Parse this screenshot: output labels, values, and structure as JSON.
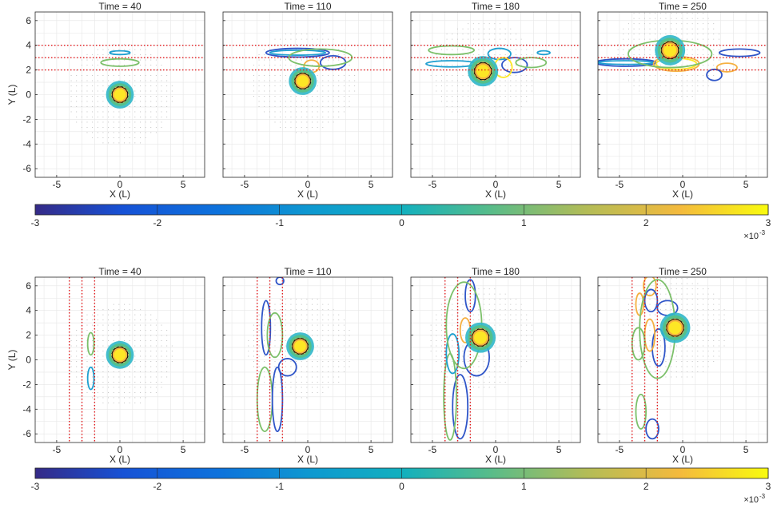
{
  "figure": {
    "axis_labels": {
      "x": "X (L)",
      "y": "Y (L)"
    },
    "colorbar_exponent_prefix": "×10",
    "colorbar_exponent": "-3"
  },
  "chart_data": [
    {
      "type": "contour",
      "row": 1,
      "title": "Time =  40",
      "xlabel": "X (L)",
      "ylabel": "Y (L)",
      "xlim": [
        -6.7,
        6.7
      ],
      "ylim": [
        -6.7,
        6.7
      ],
      "xticks": [
        -5,
        0,
        5
      ],
      "yticks": [
        -6,
        -4,
        -2,
        0,
        2,
        4,
        6
      ],
      "grid": true,
      "reference_lines": {
        "orientation": "horizontal",
        "color": "#e41a1c",
        "style": "dotted",
        "values": [
          2,
          3,
          4
        ]
      },
      "vortex": {
        "x": 0,
        "y": 0,
        "radius": 1.1
      },
      "contours": [
        {
          "x": 0,
          "y": 3.4,
          "rx": 0.8,
          "ry": 0.15,
          "color": "#1f9fd0",
          "level": -0.8
        },
        {
          "x": 0,
          "y": 2.6,
          "rx": 1.5,
          "ry": 0.3,
          "color": "#7cc06a",
          "level": 0.5
        }
      ]
    },
    {
      "type": "contour",
      "row": 1,
      "title": "Time =  110",
      "xlabel": "X (L)",
      "ylabel": "",
      "xlim": [
        -6.7,
        6.7
      ],
      "ylim": [
        -6.7,
        6.7
      ],
      "xticks": [
        -5,
        0,
        5
      ],
      "yticks": [
        -6,
        -4,
        -2,
        0,
        2,
        4,
        6
      ],
      "grid": true,
      "reference_lines": {
        "orientation": "horizontal",
        "color": "#e41a1c",
        "style": "dotted",
        "values": [
          2,
          3,
          4
        ]
      },
      "vortex": {
        "x": -0.4,
        "y": 1.1,
        "radius": 1.1
      },
      "contours": [
        {
          "x": -0.8,
          "y": 3.4,
          "rx": 2.5,
          "ry": 0.35,
          "color": "#2f55c8",
          "level": -2.5
        },
        {
          "x": -0.8,
          "y": 3.4,
          "rx": 2.2,
          "ry": 0.2,
          "color": "#1f9fd0",
          "level": -1.2
        },
        {
          "x": 2.0,
          "y": 2.6,
          "rx": 1.0,
          "ry": 0.55,
          "color": "#2f55c8",
          "level": -2
        },
        {
          "x": 0.3,
          "y": 2.3,
          "rx": 0.6,
          "ry": 0.5,
          "color": "#f5b041",
          "level": 2.2
        },
        {
          "x": 1.0,
          "y": 3.0,
          "rx": 2.5,
          "ry": 0.7,
          "color": "#7cc06a",
          "level": 0.5
        }
      ]
    },
    {
      "type": "contour",
      "row": 1,
      "title": "Time =  180",
      "xlabel": "X (L)",
      "ylabel": "",
      "xlim": [
        -6.7,
        6.7
      ],
      "ylim": [
        -6.7,
        6.7
      ],
      "xticks": [
        -5,
        0,
        5
      ],
      "yticks": [
        -6,
        -4,
        -2,
        0,
        2,
        4,
        6
      ],
      "grid": true,
      "reference_lines": {
        "orientation": "horizontal",
        "color": "#e41a1c",
        "style": "dotted",
        "values": [
          2,
          3,
          4
        ]
      },
      "vortex": {
        "x": -1.0,
        "y": 1.9,
        "radius": 1.2
      },
      "contours": [
        {
          "x": -3.5,
          "y": 2.5,
          "rx": 2.0,
          "ry": 0.25,
          "color": "#1f9fd0",
          "level": -1
        },
        {
          "x": -3.5,
          "y": 3.6,
          "rx": 1.8,
          "ry": 0.35,
          "color": "#7cc06a",
          "level": 0.5
        },
        {
          "x": 1.5,
          "y": 2.4,
          "rx": 1.0,
          "ry": 0.6,
          "color": "#2f55c8",
          "level": -2
        },
        {
          "x": 0.3,
          "y": 3.3,
          "rx": 0.9,
          "ry": 0.45,
          "color": "#1f9fd0",
          "level": -1
        },
        {
          "x": 0.6,
          "y": 2.2,
          "rx": 0.7,
          "ry": 0.8,
          "color": "#fde725",
          "level": 3
        },
        {
          "x": 2.8,
          "y": 2.6,
          "rx": 1.2,
          "ry": 0.4,
          "color": "#7cc06a",
          "level": 0.5
        },
        {
          "x": 3.8,
          "y": 3.4,
          "rx": 0.5,
          "ry": 0.15,
          "color": "#1f9fd0",
          "level": -1
        }
      ]
    },
    {
      "type": "contour",
      "row": 1,
      "title": "Time =  250",
      "xlabel": "X (L)",
      "ylabel": "",
      "xlim": [
        -6.7,
        6.7
      ],
      "ylim": [
        -6.7,
        6.7
      ],
      "xticks": [
        -5,
        0,
        5
      ],
      "yticks": [
        -6,
        -4,
        -2,
        0,
        2,
        4,
        6
      ],
      "grid": true,
      "reference_lines": {
        "orientation": "horizontal",
        "color": "#e41a1c",
        "style": "dotted",
        "values": [
          2,
          3,
          4
        ]
      },
      "vortex": {
        "x": -1.0,
        "y": 3.6,
        "radius": 1.2
      },
      "contours": [
        {
          "x": -4.5,
          "y": 2.6,
          "rx": 2.4,
          "ry": 0.3,
          "color": "#2f55c8",
          "level": -2.5
        },
        {
          "x": -4.5,
          "y": 2.6,
          "rx": 2.2,
          "ry": 0.15,
          "color": "#1f9fd0",
          "level": -1
        },
        {
          "x": -0.5,
          "y": 2.5,
          "rx": 1.8,
          "ry": 0.6,
          "color": "#f5b041",
          "level": 2.2
        },
        {
          "x": -0.5,
          "y": 2.5,
          "rx": 1.6,
          "ry": 0.45,
          "color": "#fde725",
          "level": 3
        },
        {
          "x": -1.0,
          "y": 3.3,
          "rx": 3.3,
          "ry": 1.1,
          "color": "#7cc06a",
          "level": 0.5
        },
        {
          "x": 4.5,
          "y": 3.4,
          "rx": 1.6,
          "ry": 0.3,
          "color": "#2f55c8",
          "level": -2.5
        },
        {
          "x": 3.5,
          "y": 2.2,
          "rx": 0.8,
          "ry": 0.35,
          "color": "#f5b041",
          "level": 2
        },
        {
          "x": 2.5,
          "y": 1.6,
          "rx": 0.6,
          "ry": 0.45,
          "color": "#2f55c8",
          "level": -2
        }
      ]
    },
    {
      "type": "contour",
      "row": 2,
      "title": "Time =  40",
      "xlabel": "X (L)",
      "ylabel": "Y (L)",
      "xlim": [
        -6.7,
        6.7
      ],
      "ylim": [
        -6.7,
        6.7
      ],
      "xticks": [
        -5,
        0,
        5
      ],
      "yticks": [
        -6,
        -4,
        -2,
        0,
        2,
        4,
        6
      ],
      "grid": true,
      "reference_lines": {
        "orientation": "vertical",
        "color": "#e41a1c",
        "style": "dotted",
        "values": [
          -4,
          -3,
          -2
        ]
      },
      "vortex": {
        "x": 0,
        "y": 0.4,
        "radius": 1.1
      },
      "contours": [
        {
          "x": -2.3,
          "y": 1.3,
          "rx": 0.25,
          "ry": 0.9,
          "color": "#7cc06a",
          "level": 0.5
        },
        {
          "x": -2.3,
          "y": -1.5,
          "rx": 0.25,
          "ry": 0.9,
          "color": "#1f9fd0",
          "level": -1
        }
      ]
    },
    {
      "type": "contour",
      "row": 2,
      "title": "Time =  110",
      "xlabel": "X (L)",
      "ylabel": "",
      "xlim": [
        -6.7,
        6.7
      ],
      "ylim": [
        -6.7,
        6.7
      ],
      "xticks": [
        -5,
        0,
        5
      ],
      "yticks": [
        -6,
        -4,
        -2,
        0,
        2,
        4,
        6
      ],
      "grid": true,
      "reference_lines": {
        "orientation": "vertical",
        "color": "#e41a1c",
        "style": "dotted",
        "values": [
          -4,
          -3,
          -2
        ]
      },
      "vortex": {
        "x": -0.6,
        "y": 1.1,
        "radius": 1.1
      },
      "contours": [
        {
          "x": -3.3,
          "y": 2.6,
          "rx": 0.35,
          "ry": 2.2,
          "color": "#2f55c8",
          "level": -2.5
        },
        {
          "x": -2.6,
          "y": 2.0,
          "rx": 0.6,
          "ry": 1.8,
          "color": "#7cc06a",
          "level": 0.5
        },
        {
          "x": -3.4,
          "y": -3.2,
          "rx": 0.6,
          "ry": 2.6,
          "color": "#7cc06a",
          "level": 0.5
        },
        {
          "x": -2.4,
          "y": -3.2,
          "rx": 0.4,
          "ry": 2.6,
          "color": "#2f55c8",
          "level": -2.5
        },
        {
          "x": -1.6,
          "y": -0.6,
          "rx": 0.7,
          "ry": 0.7,
          "color": "#2f55c8",
          "level": -1.5
        },
        {
          "x": -2.2,
          "y": 6.4,
          "rx": 0.3,
          "ry": 0.3,
          "color": "#2f55c8",
          "level": -2
        }
      ]
    },
    {
      "type": "contour",
      "row": 2,
      "title": "Time =  180",
      "xlabel": "X (L)",
      "ylabel": "",
      "xlim": [
        -6.7,
        6.7
      ],
      "ylim": [
        -6.7,
        6.7
      ],
      "xticks": [
        -5,
        0,
        5
      ],
      "yticks": [
        -6,
        -4,
        -2,
        0,
        2,
        4,
        6
      ],
      "grid": true,
      "reference_lines": {
        "orientation": "vertical",
        "color": "#e41a1c",
        "style": "dotted",
        "values": [
          -4,
          -3,
          -2
        ]
      },
      "vortex": {
        "x": -1.2,
        "y": 1.8,
        "radius": 1.2
      },
      "contours": [
        {
          "x": -2.8,
          "y": -3.8,
          "rx": 0.6,
          "ry": 2.6,
          "color": "#2f55c8",
          "level": -2.5
        },
        {
          "x": -3.6,
          "y": -3.0,
          "rx": 0.5,
          "ry": 3.5,
          "color": "#7cc06a",
          "level": 0.5
        },
        {
          "x": -2.0,
          "y": 5.2,
          "rx": 0.4,
          "ry": 1.3,
          "color": "#2f55c8",
          "level": -2
        },
        {
          "x": -2.4,
          "y": 2.4,
          "rx": 0.4,
          "ry": 1.0,
          "color": "#f5b041",
          "level": 2
        },
        {
          "x": -1.5,
          "y": 0.2,
          "rx": 1.0,
          "ry": 1.5,
          "color": "#2f55c8",
          "level": -2
        },
        {
          "x": -3.4,
          "y": 0.5,
          "rx": 0.5,
          "ry": 1.6,
          "color": "#1f9fd0",
          "level": -1
        },
        {
          "x": -2.5,
          "y": 2.8,
          "rx": 1.4,
          "ry": 3.5,
          "color": "#7cc06a",
          "level": 0.5
        }
      ]
    },
    {
      "type": "contour",
      "row": 2,
      "title": "Time =  250",
      "xlabel": "X (L)",
      "ylabel": "",
      "xlim": [
        -6.7,
        6.7
      ],
      "ylim": [
        -6.7,
        6.7
      ],
      "xticks": [
        -5,
        0,
        5
      ],
      "yticks": [
        -6,
        -4,
        -2,
        0,
        2,
        4,
        6
      ],
      "grid": true,
      "reference_lines": {
        "orientation": "vertical",
        "color": "#e41a1c",
        "style": "dotted",
        "values": [
          -4,
          -3,
          -2
        ]
      },
      "vortex": {
        "x": -0.6,
        "y": 2.6,
        "radius": 1.2
      },
      "contours": [
        {
          "x": -2.6,
          "y": 6.0,
          "rx": 0.5,
          "ry": 0.8,
          "color": "#f5b041",
          "level": 2
        },
        {
          "x": -2.5,
          "y": 4.8,
          "rx": 0.5,
          "ry": 0.9,
          "color": "#2f55c8",
          "level": -2.5
        },
        {
          "x": -1.2,
          "y": 4.2,
          "rx": 0.8,
          "ry": 0.6,
          "color": "#2f55c8",
          "level": -2
        },
        {
          "x": -3.4,
          "y": 4.5,
          "rx": 0.3,
          "ry": 0.9,
          "color": "#f5b041",
          "level": 2
        },
        {
          "x": -1.9,
          "y": 1.0,
          "rx": 0.5,
          "ry": 1.5,
          "color": "#2f55c8",
          "level": -2.5
        },
        {
          "x": -2.6,
          "y": 2.0,
          "rx": 0.4,
          "ry": 1.3,
          "color": "#f5b041",
          "level": 2
        },
        {
          "x": -3.5,
          "y": 1.3,
          "rx": 0.5,
          "ry": 1.3,
          "color": "#7cc06a",
          "level": 0.5
        },
        {
          "x": -3.3,
          "y": -4.2,
          "rx": 0.4,
          "ry": 1.4,
          "color": "#7cc06a",
          "level": 0.5
        },
        {
          "x": -2.4,
          "y": -5.6,
          "rx": 0.5,
          "ry": 0.8,
          "color": "#2f55c8",
          "level": -2.5
        },
        {
          "x": -2.0,
          "y": 2.5,
          "rx": 1.4,
          "ry": 4.0,
          "color": "#7cc06a",
          "level": 0.5
        }
      ]
    },
    {
      "type": "colorbar",
      "row": 1,
      "colormap": "parula",
      "range": [
        -3,
        3
      ],
      "ticks": [
        -3,
        -2,
        -1,
        0,
        1,
        2,
        3
      ]
    },
    {
      "type": "colorbar",
      "row": 2,
      "colormap": "parula",
      "range": [
        -3,
        3
      ],
      "ticks": [
        -3,
        -2,
        -1,
        0,
        1,
        2,
        3
      ]
    }
  ]
}
